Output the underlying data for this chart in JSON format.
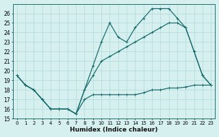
{
  "xlabel": "Humidex (Indice chaleur)",
  "bg_color": "#d6f0f0",
  "grid_color": "#b0d8d8",
  "line_color": "#1a6b6b",
  "xlim": [
    -0.5,
    23.5
  ],
  "ylim": [
    15,
    27
  ],
  "yticks": [
    15,
    16,
    17,
    18,
    19,
    20,
    21,
    22,
    23,
    24,
    25,
    26
  ],
  "xticks": [
    0,
    1,
    2,
    3,
    4,
    5,
    6,
    7,
    8,
    9,
    10,
    11,
    12,
    13,
    14,
    15,
    16,
    17,
    18,
    19,
    20,
    21,
    22,
    23
  ],
  "line1_x": [
    0,
    1,
    2,
    3,
    4,
    5,
    6,
    7,
    8,
    9,
    10,
    11,
    12,
    13,
    14,
    15,
    16,
    17,
    18,
    19,
    20,
    21,
    22,
    23
  ],
  "line1_y": [
    19.5,
    18.5,
    18.0,
    17.0,
    16.0,
    16.0,
    16.0,
    15.5,
    17.0,
    17.5,
    17.5,
    17.5,
    17.5,
    17.5,
    17.5,
    17.7,
    18.0,
    18.0,
    18.2,
    18.2,
    18.3,
    18.5,
    18.5,
    18.5
  ],
  "line2_x": [
    0,
    1,
    2,
    3,
    4,
    5,
    6,
    7,
    8,
    9,
    10,
    11,
    12,
    13,
    14,
    15,
    16,
    17,
    18,
    19,
    20,
    21,
    22,
    23
  ],
  "line2_y": [
    19.5,
    18.5,
    18.0,
    17.0,
    16.0,
    16.0,
    16.0,
    15.5,
    18.0,
    19.5,
    21.0,
    21.5,
    22.0,
    22.5,
    23.0,
    23.5,
    24.0,
    24.5,
    25.0,
    25.0,
    24.5,
    22.0,
    19.5,
    18.5
  ],
  "line3_x": [
    0,
    1,
    2,
    3,
    4,
    5,
    6,
    7,
    8,
    9,
    10,
    11,
    12,
    13,
    14,
    15,
    16,
    17,
    18,
    19,
    20,
    21,
    22,
    23
  ],
  "line3_y": [
    19.5,
    18.5,
    18.0,
    17.0,
    16.0,
    16.0,
    16.0,
    15.5,
    18.0,
    20.5,
    23.0,
    25.0,
    23.5,
    23.0,
    24.5,
    25.5,
    26.5,
    26.5,
    26.5,
    25.5,
    24.5,
    22.0,
    19.5,
    18.5
  ]
}
